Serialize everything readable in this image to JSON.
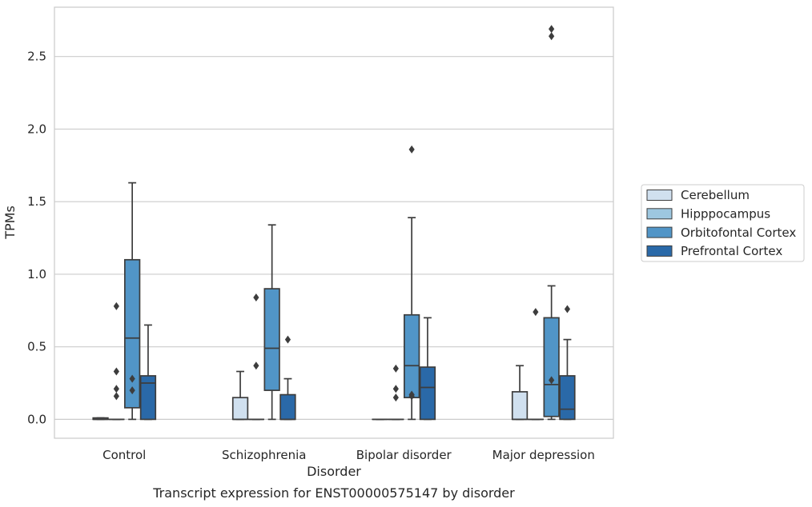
{
  "chart_data": {
    "type": "boxplot",
    "title": "",
    "caption": "Transcript expression for ENST00000575147 by disorder",
    "xlabel": "Disorder",
    "ylabel": "TPMs",
    "categories": [
      "Control",
      "Schizophrenia",
      "Bipolar disorder",
      "Major depression"
    ],
    "ylim": [
      -0.13,
      2.84
    ],
    "yticks": [
      {
        "value": 0.0,
        "label": "0.0"
      },
      {
        "value": 0.5,
        "label": "0.5"
      },
      {
        "value": 1.0,
        "label": "1.0"
      },
      {
        "value": 1.5,
        "label": "1.5"
      },
      {
        "value": 2.0,
        "label": "2.0"
      },
      {
        "value": 2.5,
        "label": "2.5"
      }
    ],
    "grid": true,
    "legend_position": "right",
    "series": [
      {
        "name": "Cerebellum",
        "color": "#d0e0ef",
        "boxes": [
          {
            "min": 0.0,
            "q1": 0.0,
            "median": 0.0,
            "q3": 0.01,
            "max": 0.01,
            "outliers": []
          },
          {
            "min": 0.0,
            "q1": 0.0,
            "median": 0.0,
            "q3": 0.15,
            "max": 0.33,
            "outliers": []
          },
          {
            "min": 0.0,
            "q1": 0.0,
            "median": 0.0,
            "q3": 0.0,
            "max": 0.0,
            "outliers": []
          },
          {
            "min": 0.0,
            "q1": 0.0,
            "median": 0.0,
            "q3": 0.19,
            "max": 0.37,
            "outliers": []
          }
        ]
      },
      {
        "name": "Hipppocampus",
        "color": "#9dc7e0",
        "boxes": [
          {
            "min": 0.0,
            "q1": 0.0,
            "median": 0.0,
            "q3": 0.0,
            "max": 0.0,
            "outliers": [
              0.16,
              0.21,
              0.33,
              0.78
            ]
          },
          {
            "min": 0.0,
            "q1": 0.0,
            "median": 0.0,
            "q3": 0.0,
            "max": 0.0,
            "outliers": [
              0.37,
              0.84
            ]
          },
          {
            "min": 0.0,
            "q1": 0.0,
            "median": 0.0,
            "q3": 0.0,
            "max": 0.0,
            "outliers": [
              0.15,
              0.21,
              0.35
            ]
          },
          {
            "min": 0.0,
            "q1": 0.0,
            "median": 0.0,
            "q3": 0.0,
            "max": 0.0,
            "outliers": [
              0.74
            ]
          }
        ]
      },
      {
        "name": "Orbitofontal Cortex",
        "color": "#5195c7",
        "boxes": [
          {
            "min": 0.0,
            "q1": 0.08,
            "median": 0.56,
            "q3": 1.1,
            "max": 1.63,
            "outliers": [
              0.2,
              0.28
            ]
          },
          {
            "min": 0.0,
            "q1": 0.2,
            "median": 0.49,
            "q3": 0.9,
            "max": 1.34,
            "outliers": []
          },
          {
            "min": 0.0,
            "q1": 0.15,
            "median": 0.37,
            "q3": 0.72,
            "max": 1.39,
            "outliers": [
              0.16,
              0.17,
              1.86
            ]
          },
          {
            "min": 0.0,
            "q1": 0.02,
            "median": 0.24,
            "q3": 0.7,
            "max": 0.92,
            "outliers": [
              0.27,
              2.64,
              2.69
            ]
          }
        ]
      },
      {
        "name": "Prefrontal Cortex",
        "color": "#2a69a8",
        "boxes": [
          {
            "min": 0.0,
            "q1": 0.0,
            "median": 0.25,
            "q3": 0.3,
            "max": 0.65,
            "outliers": []
          },
          {
            "min": 0.0,
            "q1": 0.0,
            "median": 0.0,
            "q3": 0.17,
            "max": 0.28,
            "outliers": [
              0.55
            ]
          },
          {
            "min": 0.0,
            "q1": 0.0,
            "median": 0.22,
            "q3": 0.36,
            "max": 0.7,
            "outliers": []
          },
          {
            "min": 0.0,
            "q1": 0.0,
            "median": 0.07,
            "q3": 0.3,
            "max": 0.55,
            "outliers": [
              0.76
            ]
          }
        ]
      }
    ]
  }
}
